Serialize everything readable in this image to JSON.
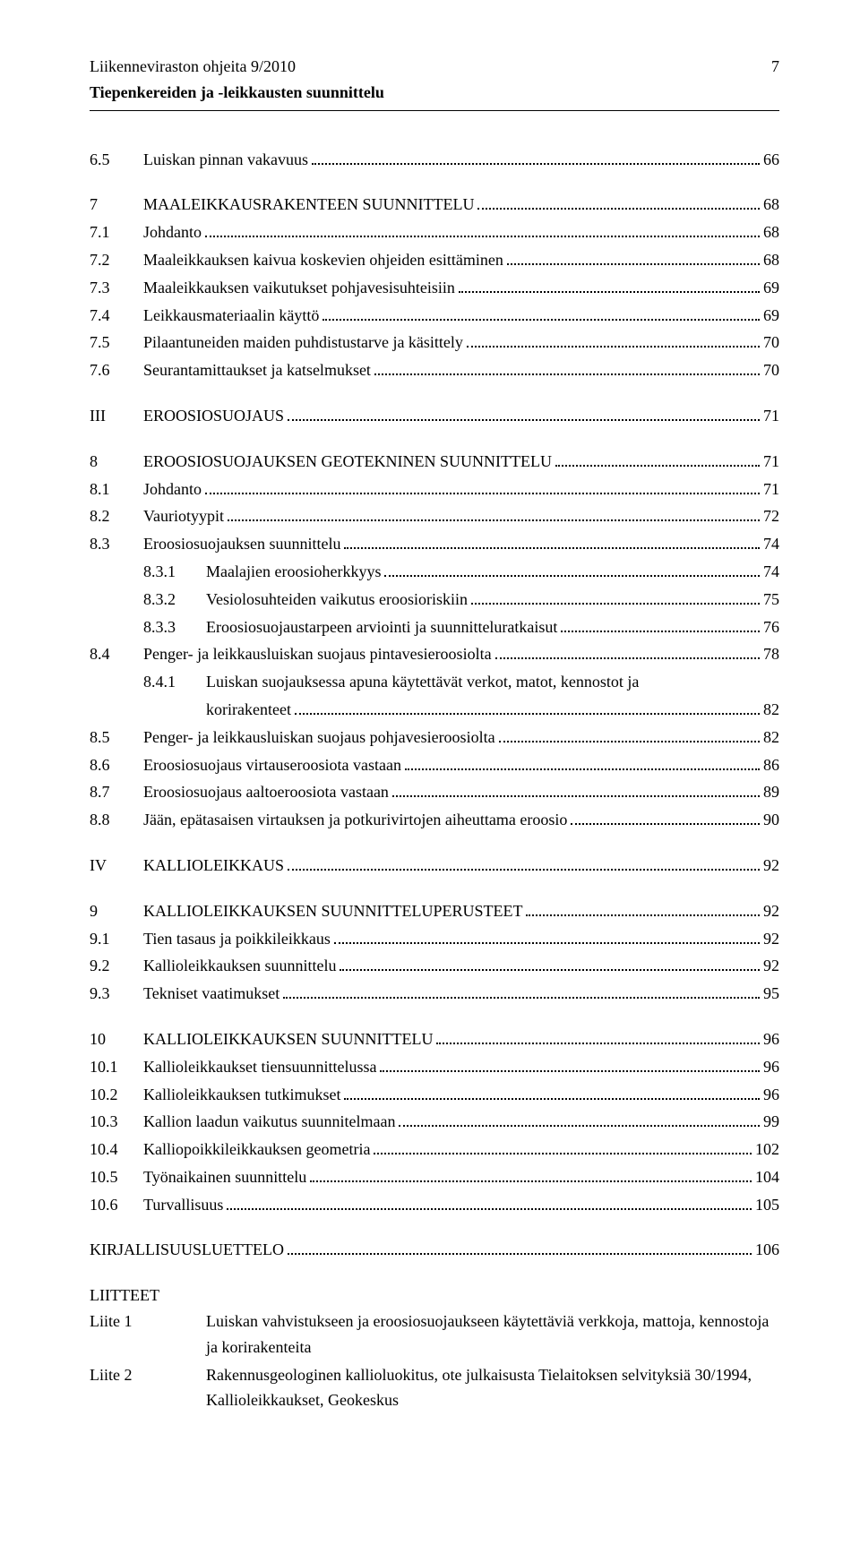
{
  "header": {
    "line1": "Liikenneviraston ohjeita 9/2010",
    "line2": "Tiepenkereiden ja -leikkausten suunnittelu",
    "page": "7"
  },
  "toc": [
    {
      "type": "entry",
      "num": "6.5",
      "label": "Luiskan pinnan vakavuus",
      "page": "66"
    },
    {
      "type": "gap"
    },
    {
      "type": "entry",
      "num": "7",
      "label": "MAALEIKKAUSRAKENTEEN SUUNNITTELU",
      "page": "68"
    },
    {
      "type": "entry",
      "num": "7.1",
      "label": "Johdanto",
      "page": "68"
    },
    {
      "type": "entry",
      "num": "7.2",
      "label": "Maaleikkauksen kaivua koskevien ohjeiden esittäminen",
      "page": "68"
    },
    {
      "type": "entry",
      "num": "7.3",
      "label": "Maaleikkauksen vaikutukset pohjavesisuhteisiin",
      "page": "69"
    },
    {
      "type": "entry",
      "num": "7.4",
      "label": "Leikkausmateriaalin käyttö",
      "page": "69"
    },
    {
      "type": "entry",
      "num": "7.5",
      "label": "Pilaantuneiden maiden puhdistustarve ja käsittely",
      "page": "70"
    },
    {
      "type": "entry",
      "num": "7.6",
      "label": "Seurantamittaukset ja katselmukset",
      "page": "70"
    },
    {
      "type": "gap"
    },
    {
      "type": "entry",
      "num": "III",
      "label": "EROOSIOSUOJAUS",
      "page": "71"
    },
    {
      "type": "gap"
    },
    {
      "type": "entry",
      "num": "8",
      "label": "EROOSIOSUOJAUKSEN GEOTEKNINEN SUUNNITTELU",
      "page": "71"
    },
    {
      "type": "entry",
      "num": "8.1",
      "label": "Johdanto",
      "page": "71"
    },
    {
      "type": "entry",
      "num": "8.2",
      "label": "Vauriotyypit",
      "page": "72"
    },
    {
      "type": "entry",
      "num": "8.3",
      "label": "Eroosiosuojauksen suunnittelu",
      "page": "74"
    },
    {
      "type": "sub",
      "num": "8.3.1",
      "label": "Maalajien eroosioherkkyys",
      "page": "74"
    },
    {
      "type": "sub",
      "num": "8.3.2",
      "label": "Vesiolosuhteiden vaikutus eroosioriskiin",
      "page": "75"
    },
    {
      "type": "sub",
      "num": "8.3.3",
      "label": "Eroosiosuojaustarpeen arviointi ja suunnitteluratkaisut",
      "page": "76"
    },
    {
      "type": "entry",
      "num": "8.4",
      "label": "Penger- ja leikkausluiskan suojaus pintavesieroosiolta",
      "page": "78"
    },
    {
      "type": "sub2",
      "num": "8.4.1",
      "label": "Luiskan suojauksessa apuna käytettävät verkot, matot, kennostot ja",
      "cont": "korirakenteet",
      "page": "82"
    },
    {
      "type": "entry",
      "num": "8.5",
      "label": "Penger- ja leikkausluiskan suojaus pohjavesieroosiolta",
      "page": "82"
    },
    {
      "type": "entry",
      "num": "8.6",
      "label": "Eroosiosuojaus virtauseroosiota vastaan",
      "page": "86"
    },
    {
      "type": "entry",
      "num": "8.7",
      "label": "Eroosiosuojaus aaltoeroosiota vastaan",
      "page": "89"
    },
    {
      "type": "entry",
      "num": "8.8",
      "label": "Jään, epätasaisen virtauksen ja potkurivirtojen aiheuttama eroosio",
      "page": "90"
    },
    {
      "type": "gap"
    },
    {
      "type": "entry",
      "num": "IV",
      "label": "KALLIOLEIKKAUS",
      "page": "92"
    },
    {
      "type": "gap"
    },
    {
      "type": "entry",
      "num": "9",
      "label": "KALLIOLEIKKAUKSEN SUUNNITTELUPERUSTEET",
      "page": "92"
    },
    {
      "type": "entry",
      "num": "9.1",
      "label": "Tien tasaus ja poikkileikkaus",
      "page": "92"
    },
    {
      "type": "entry",
      "num": "9.2",
      "label": "Kallioleikkauksen suunnittelu",
      "page": "92"
    },
    {
      "type": "entry",
      "num": "9.3",
      "label": "Tekniset vaatimukset",
      "page": "95"
    },
    {
      "type": "gap"
    },
    {
      "type": "entry",
      "num": "10",
      "label": "KALLIOLEIKKAUKSEN SUUNNITTELU",
      "page": "96"
    },
    {
      "type": "entry",
      "num": "10.1",
      "label": "Kallioleikkaukset tiensuunnittelussa",
      "page": "96"
    },
    {
      "type": "entry",
      "num": "10.2",
      "label": "Kallioleikkauksen tutkimukset",
      "page": "96"
    },
    {
      "type": "entry",
      "num": "10.3",
      "label": "Kallion laadun vaikutus suunnitelmaan",
      "page": "99"
    },
    {
      "type": "entry",
      "num": "10.4",
      "label": "Kalliopoikkileikkauksen geometria",
      "page": "102"
    },
    {
      "type": "entry",
      "num": "10.5",
      "label": "Työnaikainen suunnittelu",
      "page": "104"
    },
    {
      "type": "entry",
      "num": "10.6",
      "label": "Turvallisuus",
      "page": "105"
    },
    {
      "type": "gap"
    },
    {
      "type": "plain",
      "label": "KIRJALLISUUSLUETTELO",
      "page": "106"
    }
  ],
  "liitteet": {
    "heading": "LIITTEET",
    "items": [
      {
        "label": "Liite 1",
        "text": "Luiskan vahvistukseen ja eroosiosuojaukseen käytettäviä verkkoja, mattoja, kennostoja ja korirakenteita"
      },
      {
        "label": "Liite 2",
        "text": "Rakennusgeologinen kallioluokitus, ote julkaisusta Tielaitoksen selvityksiä 30/1994, Kallioleikkaukset, Geokeskus"
      }
    ]
  }
}
